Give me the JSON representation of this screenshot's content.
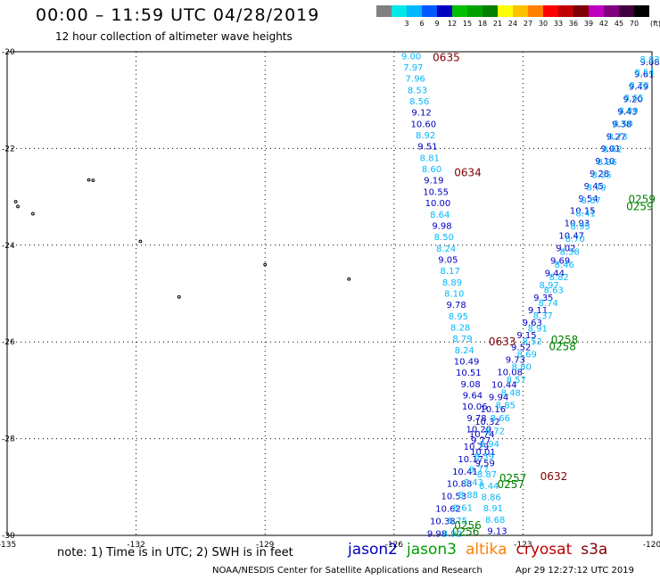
{
  "header": {
    "title": "00:00 – 11:59 UTC 04/28/2019",
    "subtitle": "12 hour collection of altimeter wave heights"
  },
  "legend": {
    "unit": "(ft)",
    "items": [
      {
        "color": "#808080",
        "label": ""
      },
      {
        "color": "#00e8e8",
        "label": "3"
      },
      {
        "color": "#00b8ff",
        "label": "6"
      },
      {
        "color": "#0058ff",
        "label": "9"
      },
      {
        "color": "#0000c0",
        "label": "12"
      },
      {
        "color": "#00c000",
        "label": "15"
      },
      {
        "color": "#00a000",
        "label": "18"
      },
      {
        "color": "#008000",
        "label": "21"
      },
      {
        "color": "#ffff00",
        "label": "24"
      },
      {
        "color": "#ffc000",
        "label": "27"
      },
      {
        "color": "#ff8000",
        "label": "30"
      },
      {
        "color": "#ff0000",
        "label": "33"
      },
      {
        "color": "#c00000",
        "label": "36"
      },
      {
        "color": "#800000",
        "label": "39"
      },
      {
        "color": "#c000c0",
        "label": "42"
      },
      {
        "color": "#800080",
        "label": "45"
      },
      {
        "color": "#400040",
        "label": "70"
      },
      {
        "color": "#000000",
        "label": ""
      }
    ]
  },
  "map": {
    "lon_range": [
      -135,
      -120
    ],
    "lat_range": [
      -30,
      -20
    ],
    "lon_ticks": [
      "-135",
      "-132",
      "-129",
      "-126",
      "-123",
      "-120"
    ],
    "lat_ticks": [
      "-20",
      "-22",
      "-24",
      "-26",
      "-28",
      "-30"
    ],
    "islands": [
      [
        -133.1,
        -22.65
      ],
      [
        -133.0,
        -22.66
      ],
      [
        -134.8,
        -23.1
      ],
      [
        -134.75,
        -23.2
      ],
      [
        -134.4,
        -23.35
      ],
      [
        -131.9,
        -23.92
      ],
      [
        -131.0,
        -25.07
      ],
      [
        -129.0,
        -24.4
      ],
      [
        -127.05,
        -24.7
      ]
    ],
    "passes": [
      {
        "start": [
          -125.6,
          -20.08
        ],
        "end": [
          -123.6,
          -29.9
        ],
        "color": "#00b8ff",
        "values": [
          {
            "v": "9.00",
            "c": "#00b8ff"
          },
          {
            "v": "7.97",
            "c": "#00b8ff"
          },
          {
            "v": "7.96",
            "c": "#00b8ff"
          },
          {
            "v": "8.53",
            "c": "#00b8ff"
          },
          {
            "v": "8.56",
            "c": "#00b8ff"
          },
          {
            "v": "9.12",
            "c": "#0000c0"
          },
          {
            "v": "10.60",
            "c": "#0000c0"
          },
          {
            "v": "8.92",
            "c": "#00b8ff"
          },
          {
            "v": "9.51",
            "c": "#0000c0"
          },
          {
            "v": "8.81",
            "c": "#00b8ff"
          },
          {
            "v": "8.60",
            "c": "#00b8ff"
          },
          {
            "v": "9.19",
            "c": "#0000c0"
          },
          {
            "v": "10.55",
            "c": "#0000c0"
          },
          {
            "v": "10.00",
            "c": "#0000c0"
          },
          {
            "v": "8.64",
            "c": "#00b8ff"
          },
          {
            "v": "9.98",
            "c": "#0000c0"
          },
          {
            "v": "8.50",
            "c": "#00b8ff"
          },
          {
            "v": "8.24",
            "c": "#00b8ff"
          },
          {
            "v": "9.05",
            "c": "#0000c0"
          },
          {
            "v": "8.17",
            "c": "#00b8ff"
          },
          {
            "v": "8.89",
            "c": "#00b8ff"
          },
          {
            "v": "8.10",
            "c": "#00b8ff"
          },
          {
            "v": "9.78",
            "c": "#0000c0"
          },
          {
            "v": "8.95",
            "c": "#00b8ff"
          },
          {
            "v": "8.28",
            "c": "#00b8ff"
          },
          {
            "v": "8.79",
            "c": "#00b8ff"
          },
          {
            "v": "8.24",
            "c": "#00b8ff"
          },
          {
            "v": "10.49",
            "c": "#0000c0"
          },
          {
            "v": "10.51",
            "c": "#0000c0"
          },
          {
            "v": "9.08",
            "c": "#0000c0"
          },
          {
            "v": "9.64",
            "c": "#0000c0"
          },
          {
            "v": "10.06",
            "c": "#0000c0"
          },
          {
            "v": "9.78",
            "c": "#0000c0"
          },
          {
            "v": "10.20",
            "c": "#0000c0"
          },
          {
            "v": "9.77",
            "c": "#0000c0"
          },
          {
            "v": "10.01",
            "c": "#0000c0"
          },
          {
            "v": "9.59",
            "c": "#0000c0"
          },
          {
            "v": "8.87",
            "c": "#00b8ff"
          },
          {
            "v": "8.44",
            "c": "#00b8ff"
          },
          {
            "v": "8.86",
            "c": "#00b8ff"
          },
          {
            "v": "8.91",
            "c": "#00b8ff"
          },
          {
            "v": "8.68",
            "c": "#00b8ff"
          },
          {
            "v": "9.13",
            "c": "#0000c0"
          }
        ]
      },
      {
        "start": [
          -125.0,
          -29.95
        ],
        "end": [
          -120.05,
          -20.2
        ],
        "color": "#0000c0",
        "values": [
          {
            "v": "9.98",
            "c": "#0000c0"
          },
          {
            "v": "10.38",
            "c": "#0000c0"
          },
          {
            "v": "10.62",
            "c": "#0000c0"
          },
          {
            "v": "10.53",
            "c": "#0000c0"
          },
          {
            "v": "10.88",
            "c": "#0000c0"
          },
          {
            "v": "10.41",
            "c": "#0000c0"
          },
          {
            "v": "10.17",
            "c": "#0000c0"
          },
          {
            "v": "10.29",
            "c": "#0000c0"
          },
          {
            "v": "10.74",
            "c": "#0000c0"
          },
          {
            "v": "10.32",
            "c": "#0000c0"
          },
          {
            "v": "10.16",
            "c": "#0000c0"
          },
          {
            "v": "9.94",
            "c": "#0000c0"
          },
          {
            "v": "10.44",
            "c": "#0000c0"
          },
          {
            "v": "10.08",
            "c": "#0000c0"
          },
          {
            "v": "9.73",
            "c": "#0000c0"
          },
          {
            "v": "9.52",
            "c": "#0000c0"
          },
          {
            "v": "9.15",
            "c": "#0000c0"
          },
          {
            "v": "9.63",
            "c": "#0000c0"
          },
          {
            "v": "9.11",
            "c": "#0000c0"
          },
          {
            "v": "9.35",
            "c": "#0000c0"
          },
          {
            "v": "8.97",
            "c": "#00b8ff"
          },
          {
            "v": "9.44",
            "c": "#0000c0"
          },
          {
            "v": "9.69",
            "c": "#0000c0"
          },
          {
            "v": "9.02",
            "c": "#0000c0"
          },
          {
            "v": "10.47",
            "c": "#0000c0"
          },
          {
            "v": "10.93",
            "c": "#0000c0"
          },
          {
            "v": "10.15",
            "c": "#0000c0"
          },
          {
            "v": "9.54",
            "c": "#0000c0"
          },
          {
            "v": "9.45",
            "c": "#0000c0"
          },
          {
            "v": "9.28",
            "c": "#0000c0"
          },
          {
            "v": "9.10",
            "c": "#0000c0"
          },
          {
            "v": "9.01",
            "c": "#0000c0"
          },
          {
            "v": "9.27",
            "c": "#0000c0"
          },
          {
            "v": "9.38",
            "c": "#0000c0"
          },
          {
            "v": "9.43",
            "c": "#0000c0"
          },
          {
            "v": "9.20",
            "c": "#0000c0"
          },
          {
            "v": "9.49",
            "c": "#0000c0"
          },
          {
            "v": "9.61",
            "c": "#0000c0"
          },
          {
            "v": "9.08",
            "c": "#0000c0"
          }
        ]
      },
      {
        "start": [
          -124.65,
          -29.95
        ],
        "end": [
          -120.05,
          -20.15
        ],
        "color": "#00b8ff",
        "values": [
          {
            "v": "8.92",
            "c": "#00b8ff"
          },
          {
            "v": "8.75",
            "c": "#00b8ff"
          },
          {
            "v": "8.61",
            "c": "#00b8ff"
          },
          {
            "v": "8.88",
            "c": "#00b8ff"
          },
          {
            "v": "8.43",
            "c": "#00b8ff"
          },
          {
            "v": "8.77",
            "c": "#00b8ff"
          },
          {
            "v": "8.59",
            "c": "#00b8ff"
          },
          {
            "v": "8.94",
            "c": "#00b8ff"
          },
          {
            "v": "8.72",
            "c": "#00b8ff"
          },
          {
            "v": "8.66",
            "c": "#00b8ff"
          },
          {
            "v": "8.85",
            "c": "#00b8ff"
          },
          {
            "v": "8.48",
            "c": "#00b8ff"
          },
          {
            "v": "8.57",
            "c": "#00b8ff"
          },
          {
            "v": "8.80",
            "c": "#00b8ff"
          },
          {
            "v": "8.69",
            "c": "#00b8ff"
          },
          {
            "v": "8.52",
            "c": "#00b8ff"
          },
          {
            "v": "8.91",
            "c": "#00b8ff"
          },
          {
            "v": "8.37",
            "c": "#00b8ff"
          },
          {
            "v": "8.74",
            "c": "#00b8ff"
          },
          {
            "v": "8.63",
            "c": "#00b8ff"
          },
          {
            "v": "8.82",
            "c": "#00b8ff"
          },
          {
            "v": "8.46",
            "c": "#00b8ff"
          },
          {
            "v": "8.58",
            "c": "#00b8ff"
          },
          {
            "v": "8.70",
            "c": "#00b8ff"
          },
          {
            "v": "8.95",
            "c": "#00b8ff"
          },
          {
            "v": "8.41",
            "c": "#00b8ff"
          },
          {
            "v": "8.67",
            "c": "#00b8ff"
          },
          {
            "v": "8.79",
            "c": "#00b8ff"
          },
          {
            "v": "8.55",
            "c": "#00b8ff"
          },
          {
            "v": "8.86",
            "c": "#00b8ff"
          },
          {
            "v": "8.62",
            "c": "#00b8ff"
          },
          {
            "v": "8.73",
            "c": "#00b8ff"
          },
          {
            "v": "8.50",
            "c": "#00b8ff"
          },
          {
            "v": "8.89",
            "c": "#00b8ff"
          },
          {
            "v": "8.65",
            "c": "#00b8ff"
          },
          {
            "v": "8.78",
            "c": "#00b8ff"
          },
          {
            "v": "8.54",
            "c": "#00b8ff"
          },
          {
            "v": "8.83",
            "c": "#00b8ff"
          }
        ]
      }
    ],
    "time_labels": [
      {
        "t": "0635",
        "lon": -125.1,
        "lat": -20.12,
        "c": "#800000"
      },
      {
        "t": "0634",
        "lon": -124.6,
        "lat": -22.5,
        "c": "#800000"
      },
      {
        "t": "0633",
        "lon": -123.8,
        "lat": -26.0,
        "c": "#800000"
      },
      {
        "t": "0632",
        "lon": -122.6,
        "lat": -28.78,
        "c": "#800000"
      },
      {
        "t": "0259",
        "lon": -120.55,
        "lat": -23.05,
        "c": "#008000"
      },
      {
        "t": "0259",
        "lon": -120.6,
        "lat": -23.2,
        "c": "#008000"
      },
      {
        "t": "0258",
        "lon": -122.35,
        "lat": -25.96,
        "c": "#008000"
      },
      {
        "t": "0258",
        "lon": -122.4,
        "lat": -26.1,
        "c": "#008000"
      },
      {
        "t": "0257",
        "lon": -123.55,
        "lat": -28.82,
        "c": "#008000"
      },
      {
        "t": "0257",
        "lon": -123.6,
        "lat": -28.95,
        "c": "#008000"
      },
      {
        "t": "0256",
        "lon": -124.6,
        "lat": -29.8,
        "c": "#008000"
      },
      {
        "t": "0256",
        "lon": -124.65,
        "lat": -29.93,
        "c": "#008000"
      }
    ]
  },
  "footer": {
    "note": "note: 1) Time is in UTC; 2) SWH is in feet",
    "satellites": [
      {
        "name": "jason2",
        "color": "#0000c0"
      },
      {
        "name": "jason3",
        "color": "#00a000"
      },
      {
        "name": "altika",
        "color": "#ff8000"
      },
      {
        "name": "cryosat",
        "color": "#c00000"
      },
      {
        "name": "s3a",
        "color": "#800000"
      }
    ],
    "credit": "NOAA/NESDIS Center for Satellite Applications and Research",
    "timestamp": "Apr 29 12:27:12 UTC 2019"
  }
}
